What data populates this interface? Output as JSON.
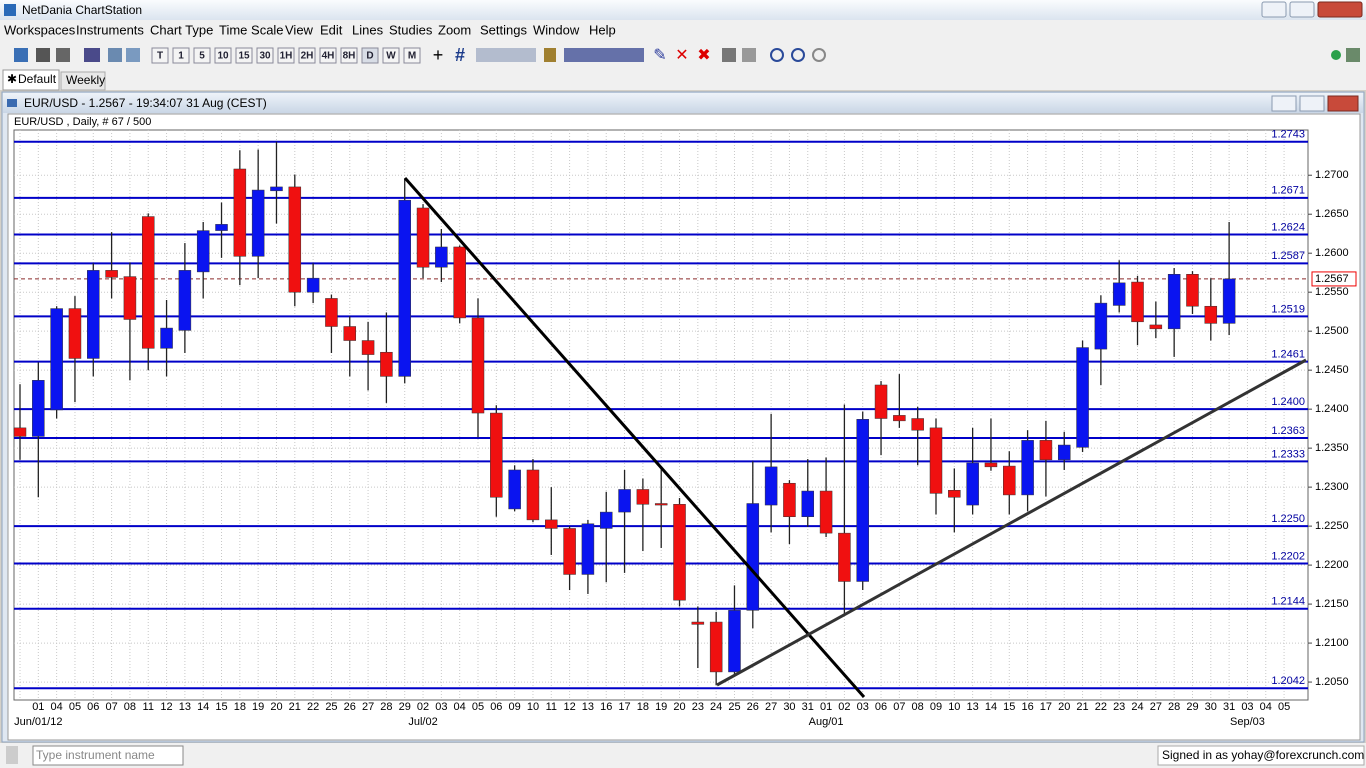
{
  "window": {
    "title": "NetDania ChartStation"
  },
  "menu": [
    "Workspaces",
    "Instruments",
    "Chart Type",
    "Time Scale",
    "View",
    "Edit",
    "Lines",
    "Studies",
    "Zoom",
    "Settings",
    "Window",
    "Help"
  ],
  "toolbar": {
    "timeframes": [
      "T",
      "1",
      "5",
      "10",
      "15",
      "30",
      "1H",
      "2H",
      "4H",
      "8H",
      "D",
      "W",
      "M"
    ]
  },
  "tabs": [
    "Default",
    "Weekly"
  ],
  "chart_window": {
    "title": "EUR/USD - 1.2567 - 19:34:07  31 Aug (CEST)"
  },
  "chart_data": {
    "type": "candlestick",
    "subtitle": "EUR/USD , Daily, # 67 / 500",
    "categories": [
      null,
      "01",
      "04",
      "05",
      "06",
      "07",
      "08",
      "11",
      "12",
      "13",
      "14",
      "15",
      "18",
      "19",
      "20",
      "21",
      "22",
      "25",
      "26",
      "27",
      "28",
      "29",
      "02",
      "03",
      "04",
      "05",
      "06",
      "09",
      "10",
      "11",
      "12",
      "13",
      "16",
      "17",
      "18",
      "19",
      "20",
      "23",
      "24",
      "25",
      "26",
      "27",
      "30",
      "31",
      "01",
      "02",
      "03",
      "06",
      "07",
      "08",
      "09",
      "10",
      "13",
      "14",
      "15",
      "16",
      "17",
      "20",
      "21",
      "22",
      "23",
      "24",
      "27",
      "28",
      "29",
      "30",
      "31",
      "03",
      "04",
      "05"
    ],
    "x_group_labels": [
      null,
      "Jun/01/12",
      null,
      null,
      null,
      null,
      null,
      null,
      null,
      null,
      null,
      null,
      null,
      null,
      null,
      null,
      null,
      null,
      null,
      null,
      null,
      null,
      "Jul/02",
      null,
      null,
      null,
      null,
      null,
      null,
      null,
      null,
      null,
      null,
      null,
      null,
      null,
      null,
      null,
      null,
      null,
      null,
      null,
      null,
      null,
      "Aug/01",
      null,
      null,
      null,
      null,
      null,
      null,
      null,
      null,
      null,
      null,
      null,
      null,
      null,
      null,
      null,
      null,
      null,
      null,
      null,
      null,
      null,
      null,
      "Sep/03",
      null,
      null
    ],
    "open": [
      1.2376,
      1.2365,
      1.2399,
      1.2529,
      1.2465,
      1.2578,
      1.257,
      1.2647,
      1.2478,
      1.2501,
      1.2576,
      1.2629,
      1.2708,
      1.2596,
      1.268,
      1.2685,
      1.255,
      1.2542,
      1.2506,
      1.2488,
      1.2473,
      1.2442,
      1.2658,
      1.2582,
      1.2608,
      1.2517,
      1.2395,
      1.2272,
      1.2322,
      1.2258,
      1.2247,
      1.2188,
      1.2247,
      1.2268,
      1.2297,
      1.2279,
      1.2278,
      1.2127,
      1.2127,
      1.2063,
      1.2142,
      1.2277,
      1.2305,
      1.2262,
      1.2295,
      1.2241,
      1.2179,
      1.2431,
      1.2392,
      1.2388,
      1.2376,
      1.2296,
      1.2277,
      1.2331,
      1.2327,
      1.229,
      1.236,
      1.2335,
      1.2351,
      1.2477,
      1.2533,
      1.2563,
      1.2508,
      1.2503,
      1.2573,
      1.2532,
      1.251,
      null,
      null,
      null
    ],
    "high": [
      1.2432,
      1.246,
      1.2532,
      1.2545,
      1.2587,
      1.2627,
      1.2588,
      1.2651,
      1.254,
      1.2613,
      1.264,
      1.2665,
      1.2732,
      1.2733,
      1.2743,
      1.2701,
      1.2587,
      1.2547,
      1.2519,
      1.2512,
      1.2524,
      1.2696,
      1.2663,
      1.2631,
      1.261,
      1.2542,
      1.2405,
      1.2328,
      1.2336,
      1.23,
      1.225,
      1.2258,
      1.2294,
      1.2322,
      1.2311,
      1.2324,
      1.2286,
      1.2147,
      1.214,
      1.2174,
      1.2333,
      1.2394,
      1.2309,
      1.2336,
      1.2338,
      1.2406,
      1.2397,
      1.2436,
      1.2445,
      1.2403,
      1.2388,
      1.2324,
      1.2376,
      1.2388,
      1.2346,
      1.2373,
      1.2385,
      1.2371,
      1.2488,
      1.2546,
      1.2591,
      1.2571,
      1.2538,
      1.2581,
      1.2577,
      1.2568,
      1.264,
      null,
      null,
      null
    ],
    "low": [
      1.2335,
      1.2287,
      1.2388,
      1.2409,
      1.2442,
      1.2542,
      1.2437,
      1.245,
      1.2442,
      1.2472,
      1.2542,
      1.2594,
      1.2559,
      1.2568,
      1.2638,
      1.2532,
      1.2536,
      1.2472,
      1.2442,
      1.2424,
      1.2408,
      1.2433,
      1.2568,
      1.2563,
      1.251,
      1.2364,
      1.2262,
      1.2269,
      1.2255,
      1.2213,
      1.2168,
      1.2163,
      1.2178,
      1.219,
      1.2218,
      1.2222,
      1.2147,
      1.2068,
      1.2046,
      1.2059,
      1.2119,
      1.2242,
      1.2227,
      1.2249,
      1.2236,
      1.2138,
      1.2168,
      1.2341,
      1.2376,
      1.2328,
      1.2265,
      1.2242,
      1.2265,
      1.2321,
      1.2265,
      1.2269,
      1.2288,
      1.2322,
      1.2345,
      1.2431,
      1.2524,
      1.2482,
      1.2491,
      1.2467,
      1.2522,
      1.2488,
      1.2495,
      null,
      null,
      null
    ],
    "close": [
      1.2365,
      1.2437,
      1.2529,
      1.2465,
      1.2578,
      1.2569,
      1.2515,
      1.2478,
      1.2504,
      1.2578,
      1.2629,
      1.2637,
      1.2596,
      1.2681,
      1.2685,
      1.255,
      1.2568,
      1.2506,
      1.2488,
      1.247,
      1.2442,
      1.2668,
      1.2582,
      1.2608,
      1.2517,
      1.2395,
      1.2287,
      1.2322,
      1.2258,
      1.2247,
      1.2188,
      1.2253,
      1.2268,
      1.2297,
      1.2278,
      1.2277,
      1.2155,
      1.2124,
      1.2063,
      1.2142,
      1.2279,
      1.2326,
      1.2262,
      1.2295,
      1.2241,
      1.2179,
      1.2387,
      1.2388,
      1.2385,
      1.2373,
      1.2292,
      1.2287,
      1.2331,
      1.2326,
      1.229,
      1.236,
      1.2335,
      1.2354,
      1.2479,
      1.2536,
      1.2562,
      1.2512,
      1.2503,
      1.2573,
      1.2532,
      1.251,
      1.2567,
      null,
      null,
      null
    ],
    "up_color": "#0a14f0",
    "down_color": "#f01010",
    "ylim": [
      1.2027,
      1.2758
    ],
    "yticks": [
      {
        "value": 1.205,
        "label": "1.2050"
      },
      {
        "value": 1.21,
        "label": "1.2100"
      },
      {
        "value": 1.215,
        "label": "1.2150"
      },
      {
        "value": 1.22,
        "label": "1.2200"
      },
      {
        "value": 1.225,
        "label": "1.2250"
      },
      {
        "value": 1.23,
        "label": "1.2300"
      },
      {
        "value": 1.235,
        "label": "1.2350"
      },
      {
        "value": 1.24,
        "label": "1.2400"
      },
      {
        "value": 1.245,
        "label": "1.2450"
      },
      {
        "value": 1.25,
        "label": "1.2500"
      },
      {
        "value": 1.255,
        "label": "1.2550"
      },
      {
        "value": 1.26,
        "label": "1.2600"
      },
      {
        "value": 1.265,
        "label": "1.2650"
      },
      {
        "value": 1.27,
        "label": "1.2700"
      }
    ],
    "levels": [
      1.2743,
      1.2671,
      1.2624,
      1.2587,
      1.2519,
      1.2461,
      {
        "value": 1.24,
        "label": "1.2400"
      },
      1.2363,
      1.2333,
      {
        "value": 1.225,
        "label": "1.2250"
      },
      1.2202,
      1.2144,
      1.2042
    ],
    "level_color": "#0000c8",
    "last_price": 1.2567,
    "grid": true
  },
  "status_bar": {
    "search_placeholder": "Type instrument name",
    "signed_in": "Signed in as yohay@forexcrunch.com"
  }
}
